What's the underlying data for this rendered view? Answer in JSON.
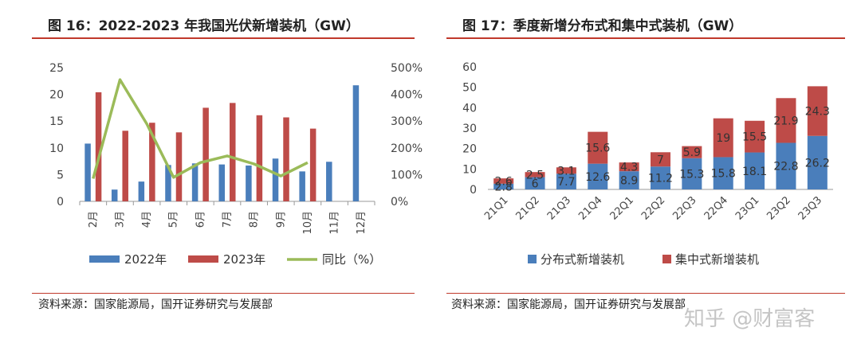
{
  "left": {
    "title": "图 16：2022-2023 年我国光伏新增装机（GW）",
    "source": "资料来源：国家能源局，国开证券研究与发展部"
  },
  "right": {
    "title": "图 17：季度新增分布式和集中式装机（GW）",
    "source": "资料来源：国家能源局，国开证券研究与发展部"
  },
  "watermark": "知乎 @财富客",
  "colors": {
    "blue": "#4a7ebb",
    "red": "#be4b48",
    "green": "#9bbb59",
    "accent": "#c0392b"
  },
  "chart_data": [
    {
      "type": "bar",
      "categories": [
        "2月",
        "3月",
        "4月",
        "5月",
        "6月",
        "7月",
        "8月",
        "9月",
        "10月",
        "11月",
        "12月"
      ],
      "series": [
        {
          "name": "2022年",
          "type": "bar",
          "axis": "left",
          "values": [
            10.8,
            2.2,
            3.7,
            6.8,
            7.1,
            6.9,
            6.7,
            8.0,
            5.6,
            7.4,
            21.7
          ]
        },
        {
          "name": "2023年",
          "type": "bar",
          "axis": "left",
          "values": [
            20.4,
            13.2,
            14.7,
            12.9,
            17.5,
            18.4,
            16.1,
            15.7,
            13.6,
            null,
            null
          ]
        },
        {
          "name": "同比（%）",
          "type": "line",
          "axis": "right",
          "values": [
            85,
            455,
            290,
            90,
            145,
            170,
            140,
            95,
            145,
            null,
            null
          ]
        }
      ],
      "y_left": {
        "ylim": [
          0,
          25
        ],
        "ticks": [
          0,
          5,
          10,
          15,
          20,
          25
        ]
      },
      "y_right": {
        "ylim": [
          0,
          500
        ],
        "ticks": [
          "0%",
          "100%",
          "200%",
          "300%",
          "400%",
          "500%"
        ]
      }
    },
    {
      "type": "bar",
      "stacked": true,
      "categories": [
        "21Q1",
        "21Q2",
        "21Q3",
        "21Q4",
        "22Q1",
        "22Q2",
        "22Q3",
        "22Q4",
        "23Q1",
        "23Q2",
        "23Q3"
      ],
      "series": [
        {
          "name": "分布式新增装机",
          "values": [
            2.8,
            6,
            7.7,
            12.6,
            8.9,
            11.2,
            15.3,
            15.8,
            18.1,
            22.8,
            26.2
          ]
        },
        {
          "name": "集中式新增装机",
          "values": [
            2.6,
            2.5,
            3.1,
            15.6,
            4.3,
            7,
            5.9,
            19,
            15.5,
            21.9,
            24.3
          ]
        }
      ],
      "ylim": [
        0,
        60
      ],
      "yticks": [
        0,
        10,
        20,
        30,
        40,
        50,
        60
      ]
    }
  ]
}
